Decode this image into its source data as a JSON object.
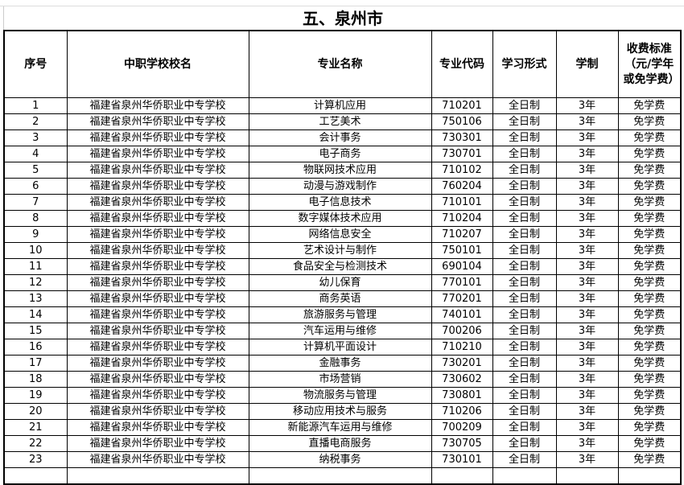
{
  "title": "五、泉州市",
  "headers": [
    "序号",
    "中职学校校名",
    "专业名称",
    "专业代码",
    "学习形式",
    "学制",
    "收费标准（元/学年或免学费）"
  ],
  "rows": [
    [
      "1",
      "福建省泉州华侨职业中专学校",
      "计算机应用",
      "710201",
      "全日制",
      "3年",
      "免学费"
    ],
    [
      "2",
      "福建省泉州华侨职业中专学校",
      "工艺美术",
      "750106",
      "全日制",
      "3年",
      "免学费"
    ],
    [
      "3",
      "福建省泉州华侨职业中专学校",
      "会计事务",
      "730301",
      "全日制",
      "3年",
      "免学费"
    ],
    [
      "4",
      "福建省泉州华侨职业中专学校",
      "电子商务",
      "730701",
      "全日制",
      "3年",
      "免学费"
    ],
    [
      "5",
      "福建省泉州华侨职业中专学校",
      "物联网技术应用",
      "710102",
      "全日制",
      "3年",
      "免学费"
    ],
    [
      "6",
      "福建省泉州华侨职业中专学校",
      "动漫与游戏制作",
      "760204",
      "全日制",
      "3年",
      "免学费"
    ],
    [
      "7",
      "福建省泉州华侨职业中专学校",
      "电子信息技术",
      "710101",
      "全日制",
      "3年",
      "免学费"
    ],
    [
      "8",
      "福建省泉州华侨职业中专学校",
      "数字媒体技术应用",
      "710204",
      "全日制",
      "3年",
      "免学费"
    ],
    [
      "9",
      "福建省泉州华侨职业中专学校",
      "网络信息安全",
      "710207",
      "全日制",
      "3年",
      "免学费"
    ],
    [
      "10",
      "福建省泉州华侨职业中专学校",
      "艺术设计与制作",
      "750101",
      "全日制",
      "3年",
      "免学费"
    ],
    [
      "11",
      "福建省泉州华侨职业中专学校",
      "食品安全与检测技术",
      "690104",
      "全日制",
      "3年",
      "免学费"
    ],
    [
      "12",
      "福建省泉州华侨职业中专学校",
      "幼儿保育",
      "770101",
      "全日制",
      "3年",
      "免学费"
    ],
    [
      "13",
      "福建省泉州华侨职业中专学校",
      "商务英语",
      "770201",
      "全日制",
      "3年",
      "免学费"
    ],
    [
      "14",
      "福建省泉州华侨职业中专学校",
      "旅游服务与管理",
      "740101",
      "全日制",
      "3年",
      "免学费"
    ],
    [
      "15",
      "福建省泉州华侨职业中专学校",
      "汽车运用与维修",
      "700206",
      "全日制",
      "3年",
      "免学费"
    ],
    [
      "16",
      "福建省泉州华侨职业中专学校",
      "计算机平面设计",
      "710210",
      "全日制",
      "3年",
      "免学费"
    ],
    [
      "17",
      "福建省泉州华侨职业中专学校",
      "金融事务",
      "730201",
      "全日制",
      "3年",
      "免学费"
    ],
    [
      "18",
      "福建省泉州华侨职业中专学校",
      "市场营销",
      "730602",
      "全日制",
      "3年",
      "免学费"
    ],
    [
      "19",
      "福建省泉州华侨职业中专学校",
      "物流服务与管理",
      "730801",
      "全日制",
      "3年",
      "免学费"
    ],
    [
      "20",
      "福建省泉州华侨职业中专学校",
      "移动应用技术与服务",
      "710206",
      "全日制",
      "3年",
      "免学费"
    ],
    [
      "21",
      "福建省泉州华侨职业中专学校",
      "新能源汽车运用与维修",
      "700209",
      "全日制",
      "3年",
      "免学费"
    ],
    [
      "22",
      "福建省泉州华侨职业中专学校",
      "直播电商服务",
      "730705",
      "全日制",
      "3年",
      "免学费"
    ],
    [
      "23",
      "福建省泉州华侨职业中专学校",
      "纳税事务",
      "730101",
      "全日制",
      "3年",
      "免学费"
    ]
  ]
}
